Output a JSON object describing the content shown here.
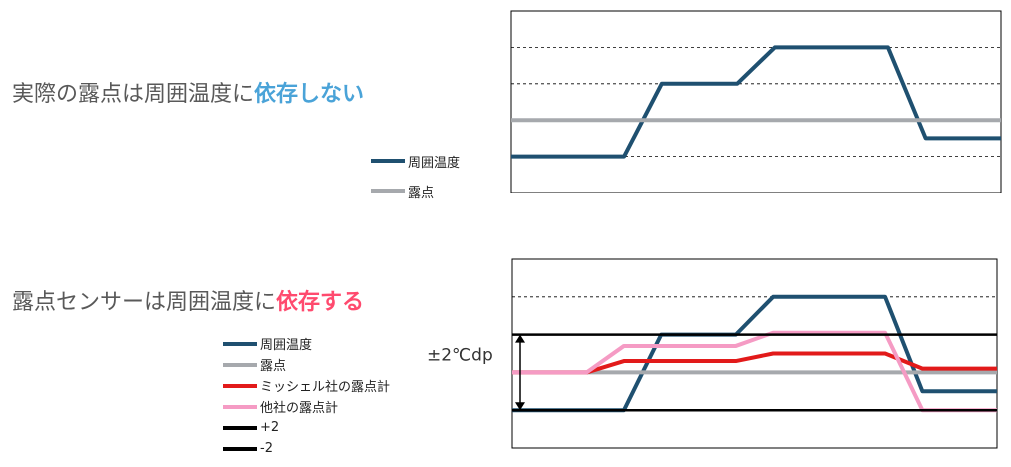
{
  "heading1": {
    "prefix": "実際の露点は周囲温度に",
    "emphasis": "依存しない",
    "emphasis_color": "#4aa3d8"
  },
  "heading2": {
    "prefix": "露点センサーは周囲温度に",
    "emphasis": "依存する",
    "emphasis_color": "#ff4a6e"
  },
  "text_color": "#595959",
  "chart_data": [
    {
      "type": "line",
      "x": [
        0,
        1,
        2,
        3,
        4,
        5,
        6,
        7,
        8,
        9,
        10,
        11,
        12,
        13
      ],
      "ylim": [
        0,
        5
      ],
      "grid": true,
      "legend_position": "left",
      "series": [
        {
          "name": "周囲温度",
          "color": "#1f5070",
          "values": [
            1,
            1,
            1,
            1,
            3,
            3,
            3,
            4,
            4,
            4,
            4,
            1.5,
            1.5,
            1.5
          ]
        },
        {
          "name": "露点",
          "color": "#a6a9ad",
          "values": [
            2,
            2,
            2,
            2,
            2,
            2,
            2,
            2,
            2,
            2,
            2,
            2,
            2,
            2
          ]
        }
      ]
    },
    {
      "type": "line",
      "x": [
        0,
        1,
        2,
        3,
        4,
        5,
        6,
        7,
        8,
        9,
        10,
        11,
        12,
        13
      ],
      "ylim": [
        0,
        5
      ],
      "grid": true,
      "legend_position": "left",
      "annotation": {
        "text": "±2℃dp",
        "range": [
          1,
          3
        ]
      },
      "series": [
        {
          "name": "周囲温度",
          "color": "#1f5070",
          "values": [
            1,
            1,
            1,
            1,
            3,
            3,
            3,
            4,
            4,
            4,
            4,
            1.5,
            1.5,
            1.5
          ]
        },
        {
          "name": "露点",
          "color": "#a6a9ad",
          "values": [
            2,
            2,
            2,
            2,
            2,
            2,
            2,
            2,
            2,
            2,
            2,
            2,
            2,
            2
          ]
        },
        {
          "name": "ミッシェル社の露点計",
          "color": "#e21a1a",
          "values": [
            2,
            2,
            2,
            2.3,
            2.3,
            2.3,
            2.3,
            2.5,
            2.5,
            2.5,
            2.5,
            2.1,
            2.1,
            2.1
          ]
        },
        {
          "name": "他社の露点計",
          "color": "#f59bc4",
          "values": [
            2,
            2,
            2,
            2.7,
            2.7,
            2.7,
            2.7,
            3.05,
            3.05,
            3.05,
            3.05,
            1,
            1,
            1
          ]
        },
        {
          "name": "+2",
          "color": "#000000",
          "values": [
            3,
            3,
            3,
            3,
            3,
            3,
            3,
            3,
            3,
            3,
            3,
            3,
            3,
            3
          ]
        },
        {
          "name": "-2",
          "color": "#000000",
          "values": [
            1,
            1,
            1,
            1,
            1,
            1,
            1,
            1,
            1,
            1,
            1,
            1,
            1,
            1
          ]
        }
      ]
    }
  ]
}
